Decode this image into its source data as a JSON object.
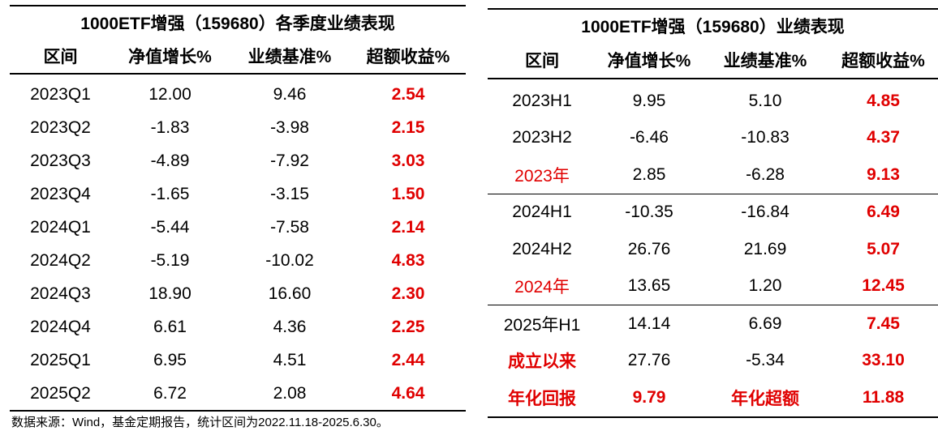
{
  "left_table": {
    "title": "1000ETF增强（159680）各季度业绩表现",
    "headers": [
      "区间",
      "净值增长%",
      "业绩基准%",
      "超额收益%"
    ],
    "rows": [
      [
        "2023Q1",
        "12.00",
        "9.46",
        "2.54"
      ],
      [
        "2023Q2",
        "-1.83",
        "-3.98",
        "2.15"
      ],
      [
        "2023Q3",
        "-4.89",
        "-7.92",
        "3.03"
      ],
      [
        "2023Q4",
        "-1.65",
        "-3.15",
        "1.50"
      ],
      [
        "2024Q1",
        "-5.44",
        "-7.58",
        "2.14"
      ],
      [
        "2024Q2",
        "-5.19",
        "-10.02",
        "4.83"
      ],
      [
        "2024Q3",
        "18.90",
        "16.60",
        "2.30"
      ],
      [
        "2024Q4",
        "6.61",
        "4.36",
        "2.25"
      ],
      [
        "2025Q1",
        "6.95",
        "4.51",
        "2.44"
      ],
      [
        "2025Q2",
        "6.72",
        "2.08",
        "4.64"
      ]
    ]
  },
  "right_table": {
    "title": "1000ETF增强（159680）业绩表现",
    "headers": [
      "区间",
      "净值增长%",
      "业绩基准%",
      "超额收益%"
    ],
    "rows": [
      [
        "2023H1",
        "9.95",
        "5.10",
        "4.85"
      ],
      [
        "2023H2",
        "-6.46",
        "-10.83",
        "4.37"
      ],
      [
        "2023年",
        "2.85",
        "-6.28",
        "9.13"
      ],
      [
        "2024H1",
        "-10.35",
        "-16.84",
        "6.49"
      ],
      [
        "2024H2",
        "26.76",
        "21.69",
        "5.07"
      ],
      [
        "2024年",
        "13.65",
        "1.20",
        "12.45"
      ],
      [
        "2025年H1",
        "14.14",
        "6.69",
        "7.45"
      ],
      [
        "成立以来",
        "27.76",
        "-5.34",
        "33.10"
      ],
      [
        "年化回报",
        "9.79",
        "年化超额",
        "11.88"
      ]
    ]
  },
  "footnote": "数据来源：Wind，基金定期报告，统计区间为2022.11.18-2025.6.30。",
  "colors": {
    "highlight": "#e00000",
    "text": "#000000"
  }
}
